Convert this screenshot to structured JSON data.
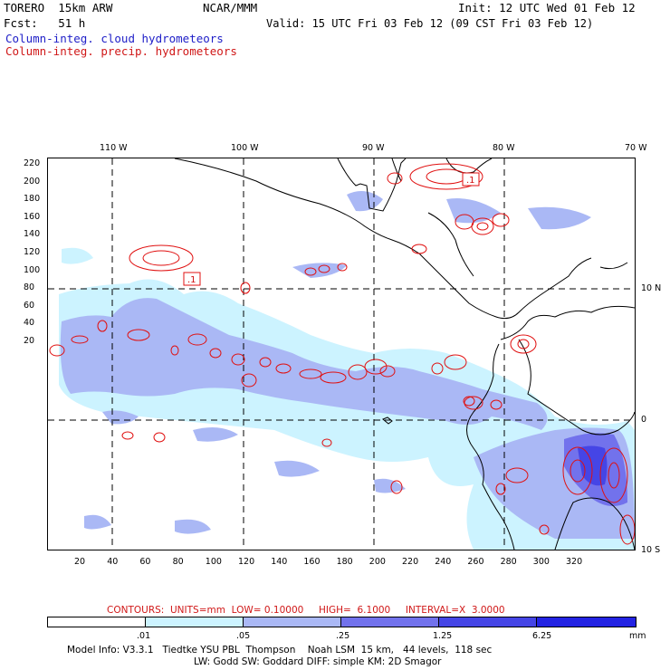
{
  "header": {
    "model": "TORERO  15km ARW",
    "org": "NCAR/MMM",
    "init": "Init: 12 UTC Wed 01 Feb 12",
    "fcst": "Fcst:   51 h",
    "valid": "Valid: 15 UTC Fri 03 Feb 12 (09 CST Fri 03 Feb 12)",
    "field1": "Column-integ. cloud hydrometeors",
    "field2": "Column-integ. precip. hydrometeors"
  },
  "top_axis": [
    "110 W",
    "100 W",
    "90 W",
    "80 W",
    "70 W"
  ],
  "right_axis": [
    "10 N",
    "0",
    "10 S"
  ],
  "left_axis": [
    "220",
    "200",
    "180",
    "160",
    "140",
    "120",
    "100",
    "80",
    "60",
    "40",
    "20"
  ],
  "bottom_axis": [
    "20",
    "40",
    "60",
    "80",
    "100",
    "120",
    "140",
    "160",
    "180",
    "200",
    "220",
    "240",
    "260",
    "280",
    "300",
    "320"
  ],
  "contour_labels": [
    ".1",
    ".1"
  ],
  "contours_info": "CONTOURS:  UNITS=mm  LOW= 0.10000     HIGH=  6.1000     INTERVAL=X  3.0000",
  "colorbar": {
    "labels": [
      ".01",
      ".05",
      ".25",
      "1.25",
      "6.25"
    ],
    "unit": "mm",
    "colors": [
      "#ffffff",
      "#ccf3ff",
      "#aab8f5",
      "#7272ec",
      "#4545e6",
      "#2323e3"
    ]
  },
  "model_info_1": "Model Info: V3.3.1   Tiedtke YSU PBL  Thompson    Noah LSM  15 km,   44 levels,  118 sec",
  "model_info_2": "LW: Godd SW: Goddard DIFF: simple KM: 2D Smagor"
}
